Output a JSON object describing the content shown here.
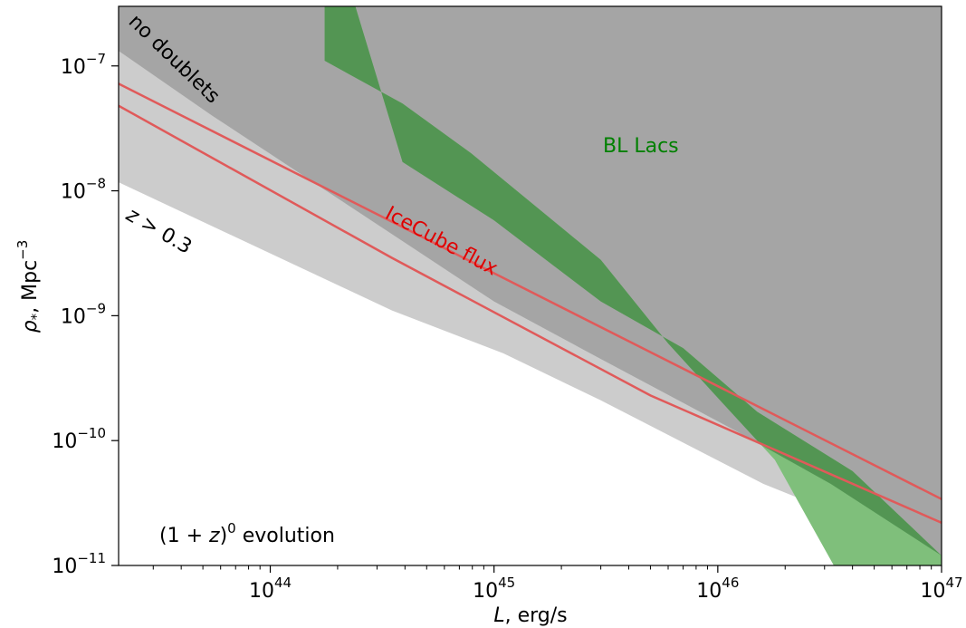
{
  "chart_data": {
    "type": "area",
    "x_scale": "log",
    "y_scale": "log",
    "xlim": [
      2.1e+43,
      1e+47
    ],
    "ylim": [
      1e-11,
      3e-07
    ],
    "grid": false,
    "xlabel_parts": {
      "var": "L",
      "rest": ", erg/s"
    },
    "ylabel_parts": {
      "var": "ρ",
      "sub": "*",
      "rest": ", Mpc",
      "sup": "−3"
    },
    "x_ticks": [
      {
        "value": 1e+44,
        "base": "10",
        "exp": "44"
      },
      {
        "value": 1e+45,
        "base": "10",
        "exp": "45"
      },
      {
        "value": 1e+46,
        "base": "10",
        "exp": "46"
      },
      {
        "value": 1e+47,
        "base": "10",
        "exp": "47"
      }
    ],
    "y_ticks": [
      {
        "value": 1e-11,
        "base": "10",
        "exp": "−11"
      },
      {
        "value": 1e-10,
        "base": "10",
        "exp": "−10"
      },
      {
        "value": 1e-09,
        "base": "10",
        "exp": "−9"
      },
      {
        "value": 1e-08,
        "base": "10",
        "exp": "−8"
      },
      {
        "value": 1e-07,
        "base": "10",
        "exp": "−7"
      }
    ],
    "regions": [
      {
        "name": "z > 0.3",
        "color": "#cccccc",
        "polygon": [
          [
            2.1e+43,
            1.17e-08
          ],
          [
            3.5e+44,
            1.1e-09
          ],
          [
            1.1e+45,
            5e-10
          ],
          [
            3e+45,
            2.1e-10
          ],
          [
            1.6e+46,
            4.5e-11
          ],
          [
            1e+47,
            1.2e-11
          ],
          [
            1e+47,
            3e-07
          ],
          [
            2.1e+43,
            3e-07
          ]
        ]
      },
      {
        "name": "no doublets",
        "color": "#a5a5a5",
        "polygon": [
          [
            2.1e+43,
            1.32e-07
          ],
          [
            5.5e+43,
            4e-08
          ],
          [
            3.5e+44,
            4.5e-09
          ],
          [
            1e+45,
            1.3e-09
          ],
          [
            3e+45,
            4.5e-10
          ],
          [
            1.2e+46,
            1.2e-10
          ],
          [
            3.2e+46,
            4.5e-11
          ],
          [
            1e+47,
            1.2e-11
          ],
          [
            1e+47,
            3e-07
          ],
          [
            2.1e+43,
            3e-07
          ]
        ]
      }
    ],
    "bands": [
      {
        "name": "BL Lacs",
        "color_light": "#7fbf7b",
        "color_dark": "#539553",
        "polygon": [
          [
            1.75e+44,
            3e-07
          ],
          [
            1.75e+44,
            1.1e-07
          ],
          [
            3.9e+44,
            5e-08
          ],
          [
            7.9e+44,
            2e-08
          ],
          [
            3e+45,
            2.8e-09
          ],
          [
            6e+45,
            6e-10
          ],
          [
            1e+46,
            2.2e-10
          ],
          [
            1.8e+46,
            7e-11
          ],
          [
            3.3e+46,
            1e-11
          ],
          [
            1e+47,
            1e-11
          ],
          [
            1e+47,
            1.2e-11
          ],
          [
            4e+46,
            5.7e-11
          ],
          [
            1.5e+46,
            1.7e-10
          ],
          [
            7e+45,
            5.5e-10
          ],
          [
            3e+45,
            1.3e-09
          ],
          [
            1e+45,
            5.8e-09
          ],
          [
            3.9e+44,
            1.7e-08
          ],
          [
            2.4e+44,
            3e-07
          ]
        ]
      }
    ],
    "series": [
      {
        "name": "IceCube flux",
        "color": "#e05a5a",
        "x": [
          2.1e+43,
          1e+47
        ],
        "y": [
          7.2e-08,
          3.4e-11
        ]
      },
      {
        "name": "IceCube flux",
        "color": "#e05a5a",
        "x": [
          2.1e+43,
          3.5e+44,
          5e+45,
          1e+47
        ],
        "y": [
          4.8e-08,
          2.9e-09,
          2.3e-10,
          2.2e-11
        ]
      }
    ],
    "annotations": [
      {
        "text": "no doublets",
        "color": "#000000"
      },
      {
        "text": "z > 0.3",
        "color": "#000000"
      },
      {
        "text": "BL Lacs",
        "color": "#008000"
      },
      {
        "text": "IceCube flux",
        "color": "#e00000"
      },
      {
        "text_parts": {
          "pre": "(1 + ",
          "var": "z",
          "post": ")",
          "sup": "0",
          "rest": " evolution"
        },
        "color": "#000000"
      }
    ]
  }
}
